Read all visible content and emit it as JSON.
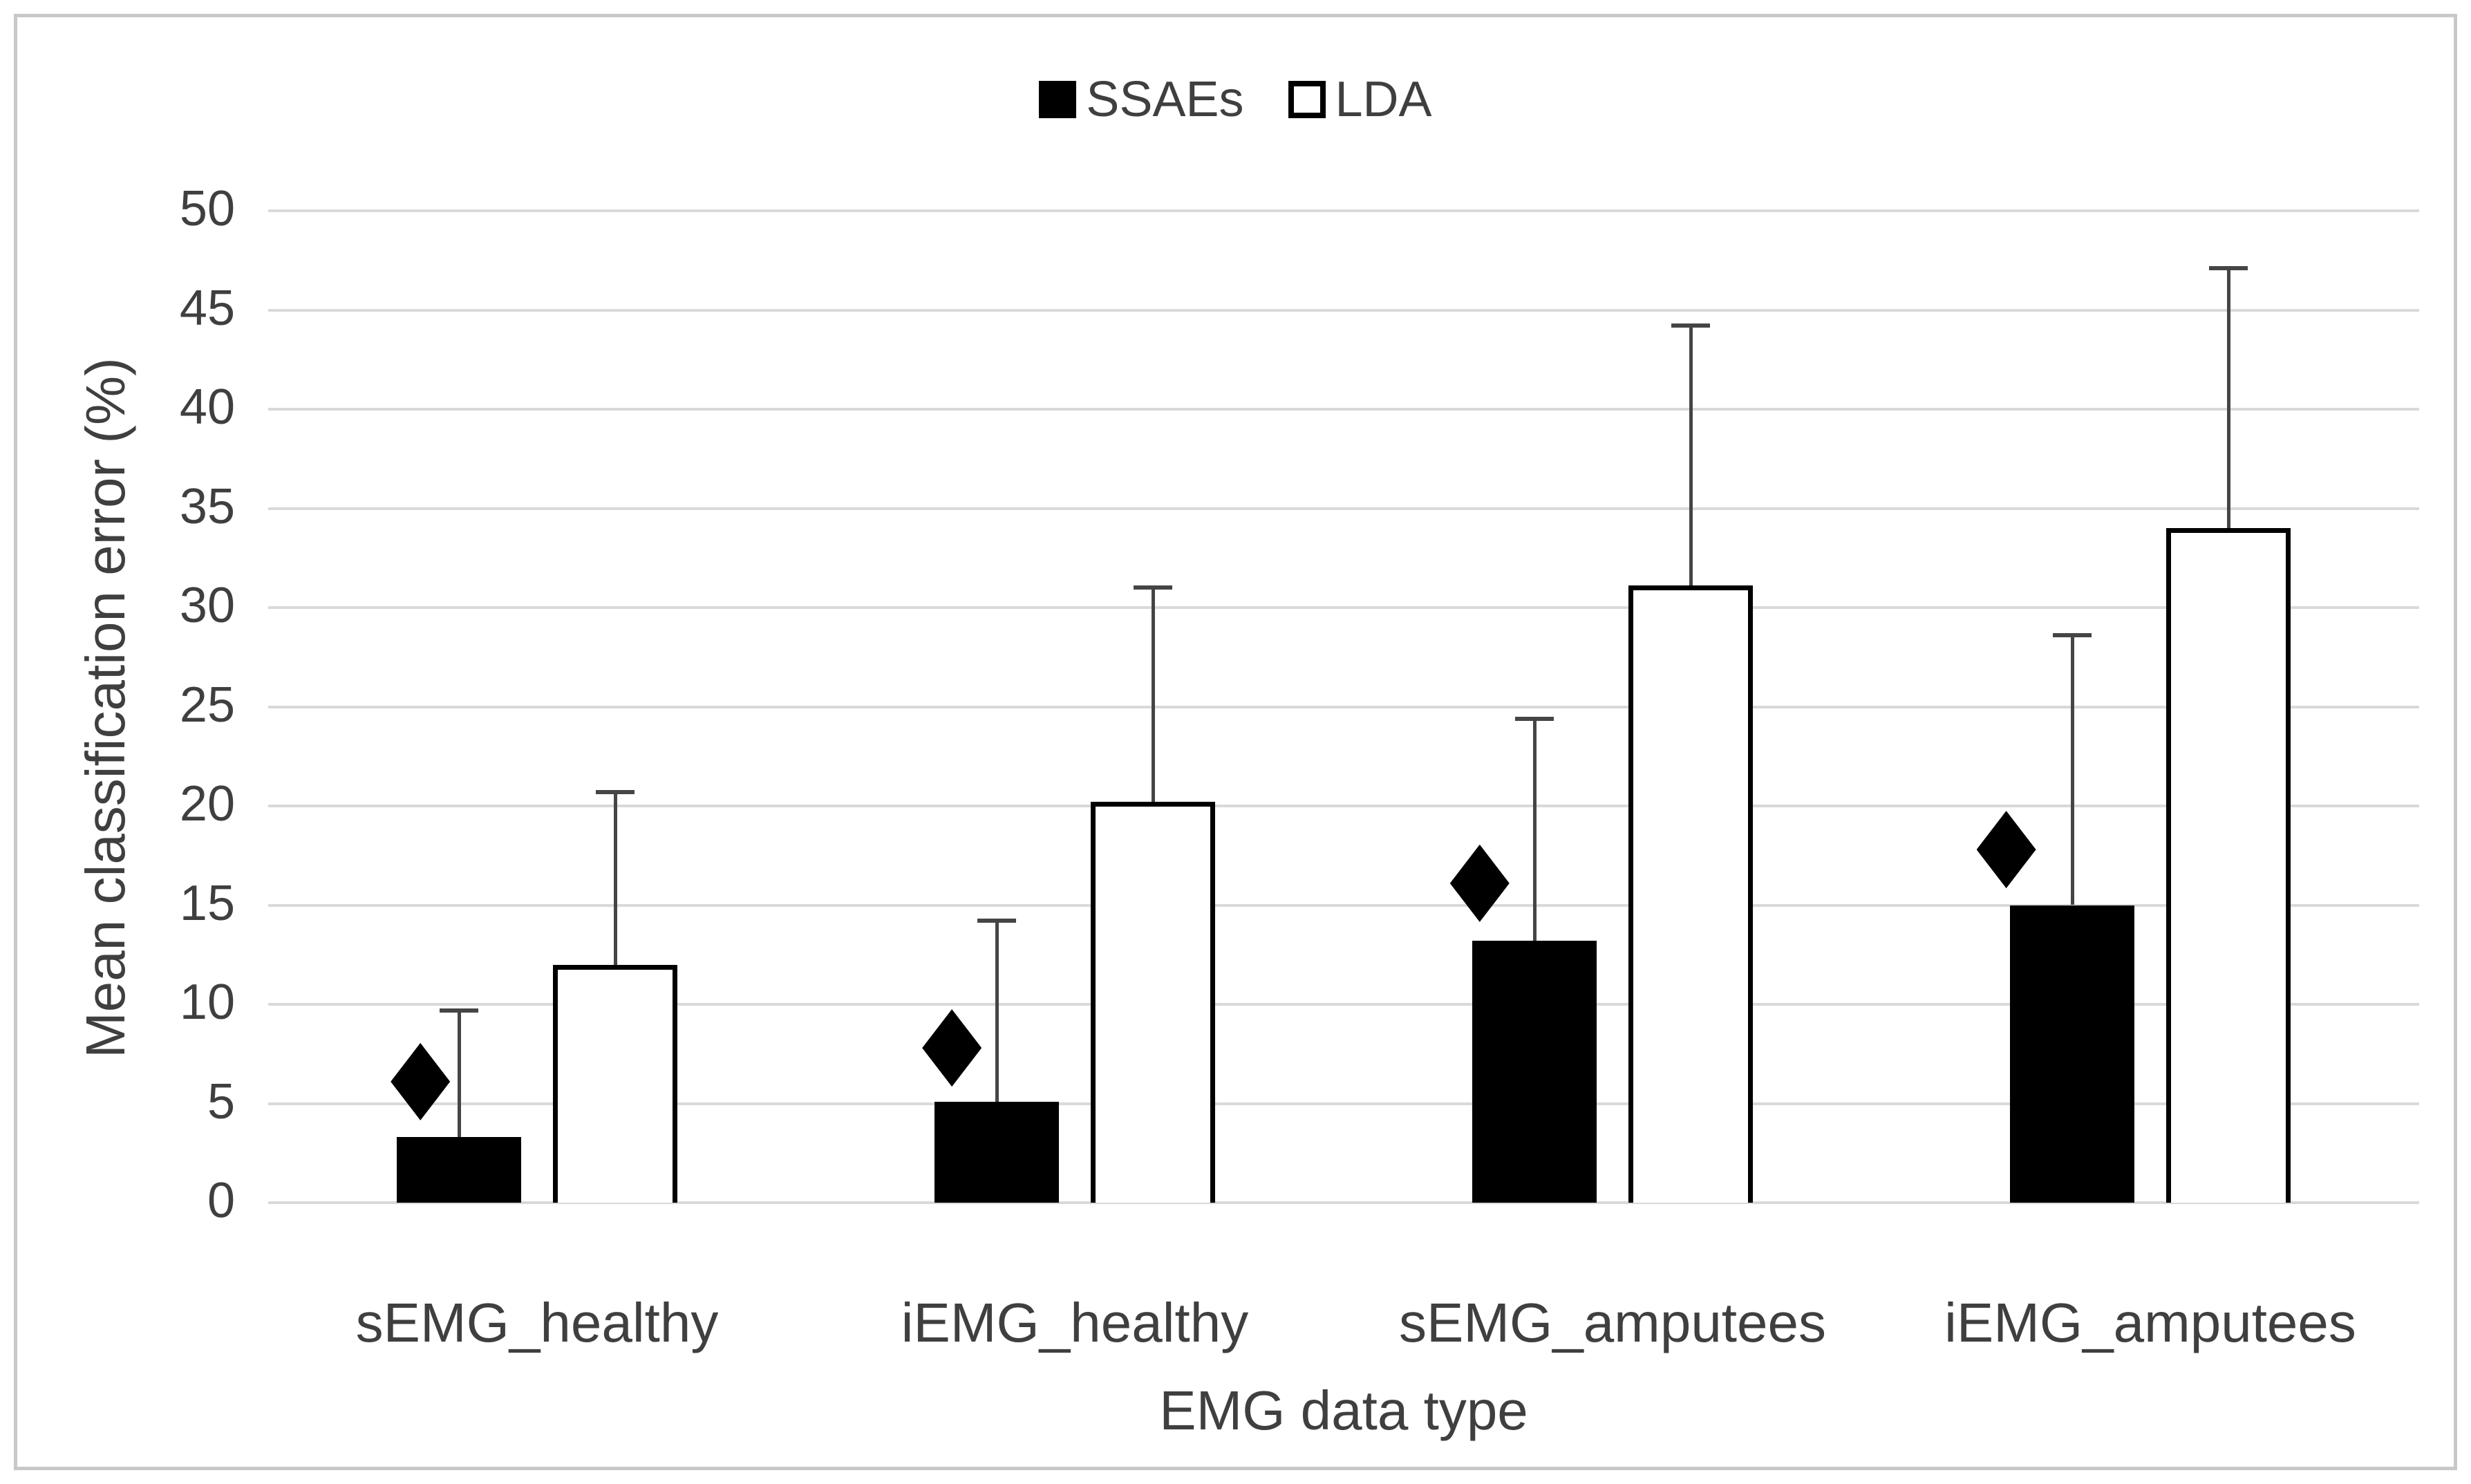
{
  "legend": {
    "items": [
      {
        "label": "SSAEs",
        "swatch": "filled-black-square"
      },
      {
        "label": "LDA",
        "swatch": "white-outlined-square"
      }
    ]
  },
  "axes": {
    "y_label": "Mean classification error (%)",
    "x_label": "EMG data type",
    "y_ticks": [
      0,
      5,
      10,
      15,
      20,
      25,
      30,
      35,
      40,
      45,
      50
    ]
  },
  "chart_data": {
    "type": "bar",
    "title": "",
    "xlabel": "EMG data type",
    "ylabel": "Mean classification error (%)",
    "ylim": [
      0,
      50
    ],
    "grid": true,
    "legend_position": "top-center",
    "categories": [
      "sEMG_healthy",
      "iEMG_healthy",
      "sEMG_amputees",
      "iEMG_amputees"
    ],
    "series": [
      {
        "name": "SSAEs",
        "style": "solid-black",
        "values": [
          3.3,
          5.1,
          13.2,
          15.0
        ],
        "error_upper": [
          6.4,
          9.1,
          11.2,
          13.6
        ]
      },
      {
        "name": "LDA",
        "style": "white-black-outline",
        "values": [
          12.0,
          20.2,
          31.1,
          34.0
        ],
        "error_upper": [
          8.7,
          10.8,
          13.1,
          13.1
        ]
      }
    ],
    "markers": {
      "shape": "diamond",
      "color": "#000000",
      "series": "SSAEs",
      "values": [
        6.1,
        7.8,
        16.1,
        17.8
      ],
      "offset_fraction_of_bar": [
        -0.31,
        -0.36,
        -0.44,
        -0.53
      ]
    }
  },
  "colors": {
    "bar_fill": "#000000",
    "bar_outline": "#000000",
    "white_bar_fill": "#ffffff",
    "gridline": "#d9d9d9",
    "error_bar": "#454545",
    "text": "#3f3f3f",
    "frame_border": "#c8c8c8",
    "background": "#ffffff"
  }
}
